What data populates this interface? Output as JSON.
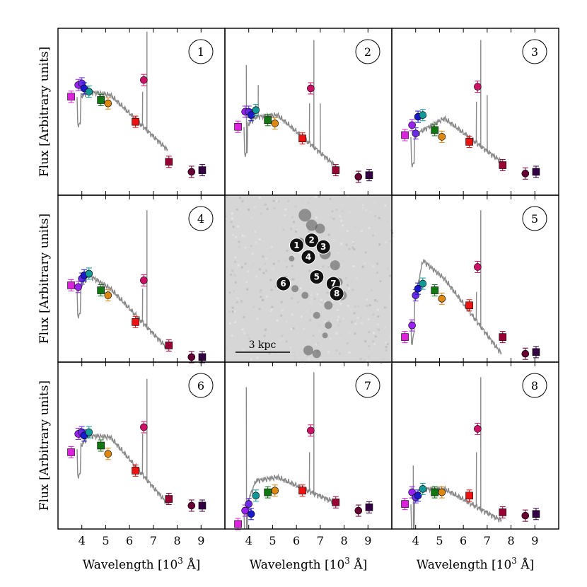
{
  "chart_data": {
    "type": "scatter",
    "figure_ylabel": "Flux [Arbitrary units]",
    "figure_xlabel": "Wavelength [10",
    "figure_xlabel_sup": "3",
    "figure_xlabel_unit": " Å]",
    "xticks": [
      "4",
      "5",
      "6",
      "7",
      "8",
      "9"
    ],
    "xlim": [
      3.0,
      10.0
    ],
    "ylim": [
      0.0,
      1.0
    ],
    "image_panel": {
      "scale_label": "3 kpc",
      "regions": [
        "1",
        "2",
        "3",
        "4",
        "5",
        "6",
        "7",
        "8"
      ]
    },
    "bands": [
      {
        "name": "band-1",
        "wl": 3.55,
        "shape": "square",
        "color": "#dd22dd"
      },
      {
        "name": "band-2",
        "wl": 3.85,
        "shape": "circle",
        "color": "#9922ee"
      },
      {
        "name": "band-3",
        "wl": 4.0,
        "shape": "circle",
        "color": "#6a2ae8"
      },
      {
        "name": "band-4",
        "wl": 4.1,
        "shape": "circle",
        "color": "#1a1acc"
      },
      {
        "name": "band-5",
        "wl": 4.3,
        "shape": "circle",
        "color": "#119999"
      },
      {
        "name": "band-6",
        "wl": 4.8,
        "shape": "square",
        "color": "#117711"
      },
      {
        "name": "band-7",
        "wl": 5.1,
        "shape": "circle",
        "color": "#dd8811"
      },
      {
        "name": "band-8",
        "wl": 6.25,
        "shape": "square",
        "color": "#ee1111"
      },
      {
        "name": "band-9",
        "wl": 6.6,
        "shape": "circle",
        "color": "#cc1166"
      },
      {
        "name": "band-10",
        "wl": 7.65,
        "shape": "square",
        "color": "#990033"
      },
      {
        "name": "band-11",
        "wl": 8.6,
        "shape": "circle",
        "color": "#660033"
      },
      {
        "name": "band-12",
        "wl": 9.05,
        "shape": "square",
        "color": "#330044"
      }
    ],
    "panels": [
      {
        "id": "1",
        "values": [
          0.59,
          0.66,
          0.67,
          0.64,
          0.62,
          0.57,
          0.55,
          0.44,
          0.69,
          0.2,
          0.14,
          0.15
        ],
        "spectrum": {
          "start": 0.58,
          "c1": 0.62,
          "bend": 0.6,
          "end": 0.27,
          "peak": 0.93,
          "spikes": [
            [
              6.55,
              0.62
            ],
            [
              6.73,
              0.98
            ]
          ]
        }
      },
      {
        "id": "2",
        "values": [
          0.41,
          0.5,
          0.5,
          0.48,
          0.51,
          0.45,
          0.43,
          0.34,
          0.64,
          0.15,
          0.11,
          0.12
        ],
        "spectrum": {
          "start": 0.4,
          "c1": 0.47,
          "bend": 0.48,
          "end": 0.18,
          "peak": 0.88,
          "spikes": [
            [
              3.9,
              0.78
            ],
            [
              4.4,
              0.66
            ],
            [
              6.55,
              0.55
            ],
            [
              6.73,
              0.93
            ],
            [
              7.0,
              0.55
            ]
          ]
        }
      },
      {
        "id": "3",
        "values": [
          0.36,
          0.42,
          0.37,
          0.47,
          0.48,
          0.39,
          0.35,
          0.32,
          0.65,
          0.18,
          0.13,
          0.14
        ],
        "spectrum": {
          "start": 0.34,
          "c1": 0.39,
          "bend": 0.46,
          "end": 0.2,
          "peak": 0.93,
          "spikes": [
            [
              6.55,
              0.56
            ],
            [
              6.73,
              0.93
            ],
            [
              7.0,
              0.6
            ]
          ]
        }
      },
      {
        "id": "4",
        "values": [
          0.46,
          0.45,
          0.5,
          0.52,
          0.53,
          0.43,
          0.4,
          0.24,
          0.49,
          0.1,
          0.03,
          0.03
        ],
        "spectrum": {
          "start": 0.43,
          "c1": 0.52,
          "bend": 0.44,
          "end": 0.08,
          "peak": 0.91,
          "spikes": [
            [
              6.55,
              0.44
            ],
            [
              6.73,
              0.91
            ]
          ]
        }
      },
      {
        "id": "5",
        "values": [
          0.15,
          0.22,
          0.4,
          0.44,
          0.47,
          0.43,
          0.38,
          0.34,
          0.57,
          0.15,
          0.05,
          0.06
        ],
        "spectrum": {
          "start": 0.24,
          "c1": 0.61,
          "bend": 0.5,
          "end": 0.05,
          "peak": 0.91,
          "spikes": [
            [
              6.55,
              0.42
            ],
            [
              6.73,
              0.91
            ]
          ]
        }
      },
      {
        "id": "6",
        "values": [
          0.46,
          0.57,
          0.58,
          0.56,
          0.58,
          0.5,
          0.45,
          0.35,
          0.61,
          0.18,
          0.14,
          0.14
        ],
        "spectrum": {
          "start": 0.47,
          "c1": 0.56,
          "bend": 0.55,
          "end": 0.15,
          "peak": 0.9,
          "spikes": [
            [
              6.55,
              0.57
            ],
            [
              6.73,
              0.9
            ]
          ]
        }
      },
      {
        "id": "7",
        "values": [
          0.03,
          0.11,
          0.15,
          0.09,
          0.2,
          0.22,
          0.23,
          0.23,
          0.59,
          0.16,
          0.11,
          0.13
        ],
        "spectrum": {
          "start": 0.1,
          "c1": 0.29,
          "bend": 0.31,
          "end": 0.16,
          "peak": 0.94,
          "spikes": [
            [
              3.9,
              0.85
            ],
            [
              6.55,
              0.46
            ],
            [
              6.73,
              0.94
            ]
          ]
        }
      },
      {
        "id": "8",
        "values": [
          0.15,
          0.22,
          0.19,
          0.2,
          0.24,
          0.22,
          0.22,
          0.2,
          0.6,
          0.1,
          0.08,
          0.09
        ],
        "spectrum": {
          "start": 0.14,
          "c1": 0.24,
          "bend": 0.24,
          "end": 0.05,
          "peak": 0.91,
          "spikes": [
            [
              3.9,
              0.38
            ],
            [
              6.55,
              0.46
            ],
            [
              6.73,
              0.91
            ]
          ]
        }
      }
    ]
  }
}
